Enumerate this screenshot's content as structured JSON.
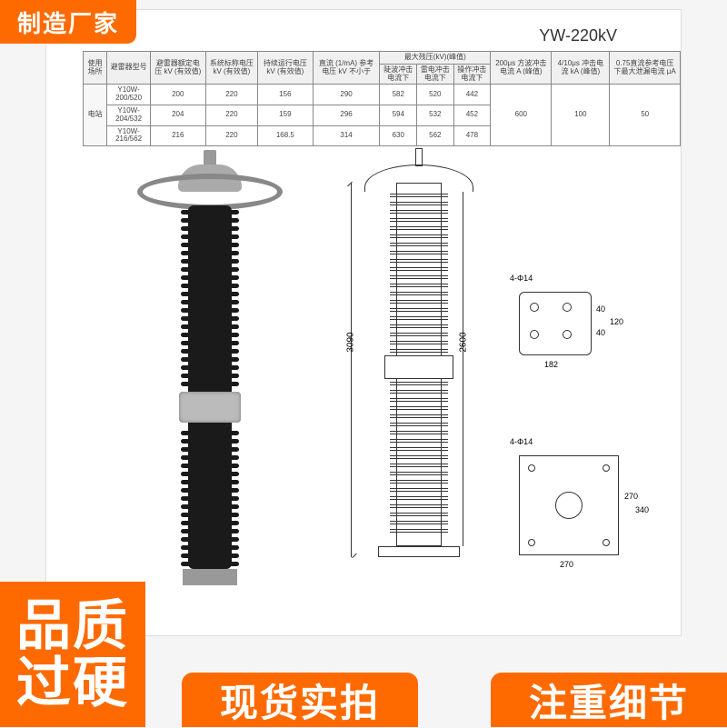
{
  "model_title": "YW-220kV",
  "table": {
    "head_row1": [
      "使用场所",
      "避雷器型号",
      "避雷器额定电压 kV (有效值)",
      "系统标称电压 kV (有效值)",
      "持续运行电压 kV (有效值)",
      "直流 (1/mA) 参考电压 kV 不小于",
      "最大残压(kV)(峰值)",
      "",
      "",
      "200μs 方波冲击电流 A (峰值)",
      "4/10μs 冲击电流 kA (峰值)",
      "0.75直流参考电压下最大泄漏电流 μA"
    ],
    "head_row2": [
      "",
      "",
      "",
      "",
      "",
      "",
      "陡波冲击电流下",
      "雷电冲击电流下",
      "操作冲击电流下",
      "",
      "",
      ""
    ],
    "rows": [
      [
        "电站",
        "Y10W-200/520",
        "200",
        "220",
        "156",
        "290",
        "582",
        "520",
        "442",
        "600",
        "100",
        "50"
      ],
      [
        "",
        "Y10W-204/532",
        "204",
        "220",
        "159",
        "296",
        "594",
        "532",
        "452",
        "",
        "",
        ""
      ],
      [
        "",
        "Y10W-216/562",
        "216",
        "220",
        "168.5",
        "314",
        "630",
        "562",
        "478",
        "",
        "",
        ""
      ]
    ],
    "header_bg": "#f0f0f0",
    "border_color": "#888"
  },
  "diagram_dims": {
    "overall_height": "3090",
    "inner_height": "2600",
    "detail1_note": "4-Φ14",
    "detail1_h1": "40",
    "detail1_h2": "40",
    "detail1_h3": "120",
    "detail1_w": "182",
    "detail2_note": "4-Φ14",
    "detail2_h1": "270",
    "detail2_h2": "340",
    "detail2_w": "270"
  },
  "photo_colors": {
    "insulator": "#1a1a1a",
    "metal": "#999999",
    "ring": "#888888"
  },
  "badges": {
    "top_left": "制造厂家",
    "bottom_left_l1": "品质",
    "bottom_left_l2": "过硬",
    "bottom_center": "现货实拍",
    "bottom_right": "注重细节",
    "bg": "#ff6a00",
    "color": "#ffffff"
  }
}
